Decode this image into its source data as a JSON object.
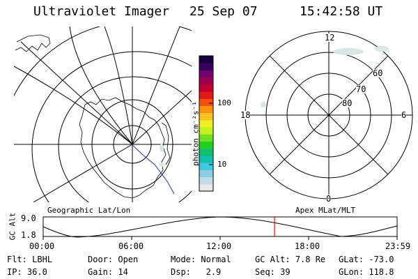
{
  "header": {
    "title": "Ultraviolet Imager",
    "date": "25 Sep 07",
    "time": "15:42:58 UT"
  },
  "geo_map": {
    "label": "Geographic Lat/Lon"
  },
  "colorbar": {
    "unit_label": "photon cm⁻²s⁻¹",
    "tick_high": "100",
    "tick_low": "10",
    "colors": [
      "#e8e8e8",
      "#c0dbe6",
      "#8ccfe6",
      "#44c8e0",
      "#10c0b0",
      "#10c070",
      "#20d020",
      "#70e020",
      "#c0f020",
      "#f0f020",
      "#f8c020",
      "#f89010",
      "#f05010",
      "#e01818",
      "#c00030",
      "#a00050",
      "#700070",
      "#3a0060",
      "#180040"
    ]
  },
  "polar_map": {
    "label": "Apex MLat/MLT",
    "mlt_labels": {
      "top": "12",
      "left": "18",
      "right": "6",
      "bottom": "0"
    },
    "lat_labels": [
      "60",
      "70",
      "80"
    ]
  },
  "altitude_plot": {
    "ylabel": "GC Alt",
    "y_ticks": [
      "9.0",
      "1.8"
    ],
    "x_ticks": [
      "00:00",
      "06:00",
      "12:00",
      "18:00",
      "23:59"
    ],
    "marker_color": "#ff0000"
  },
  "status": {
    "row1": [
      {
        "label": "Flt:",
        "value": "LBHL"
      },
      {
        "label": "Door:",
        "value": "Open"
      },
      {
        "label": "Mode:",
        "value": "Normal"
      },
      {
        "label": "GC Alt:",
        "value": "7.8 Re"
      },
      {
        "label": "GLat:",
        "value": "-73.0"
      }
    ],
    "row2": [
      {
        "label": "IP:",
        "value": "36.0"
      },
      {
        "label": "Gain:",
        "value": "14"
      },
      {
        "label": "Dsp:",
        "value": "2.9"
      },
      {
        "label": "Seq:",
        "value": "39"
      },
      {
        "label": "GLon:",
        "value": "118.8"
      }
    ]
  }
}
